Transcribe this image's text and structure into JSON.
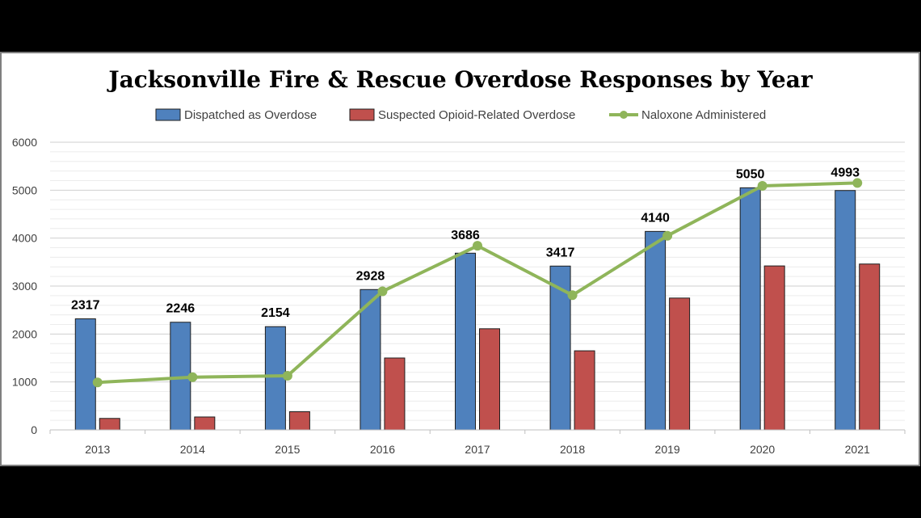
{
  "colors": {
    "dispatched": "#4f81bd",
    "suspected": "#c0504d",
    "naloxone": "#8fb55a",
    "grid": "#d9d9d9",
    "background": "#ffffff"
  },
  "chart_data": {
    "type": "bar",
    "title": "Jacksonville Fire & Rescue Overdose Responses by Year",
    "categories": [
      "2013",
      "2014",
      "2015",
      "2016",
      "2017",
      "2018",
      "2019",
      "2020",
      "2021"
    ],
    "series": [
      {
        "name": "Dispatched as Overdose",
        "type": "bar",
        "values": [
          2317,
          2246,
          2154,
          2928,
          3686,
          3417,
          4140,
          5050,
          4993
        ],
        "data_labels": [
          "2317",
          "2246",
          "2154",
          "2928",
          "3686",
          "3417",
          "4140",
          "5050",
          "4993"
        ]
      },
      {
        "name": "Suspected Opioid-Related Overdose",
        "type": "bar",
        "values": [
          240,
          270,
          380,
          1500,
          2110,
          1650,
          2750,
          3420,
          3460
        ]
      },
      {
        "name": "Naloxone Administered",
        "type": "line",
        "values": [
          990,
          1100,
          1130,
          2890,
          3840,
          2810,
          4050,
          5090,
          5150
        ]
      }
    ],
    "y_ticks": [
      "0",
      "1000",
      "2000",
      "3000",
      "4000",
      "5000",
      "6000"
    ],
    "ylim": [
      0,
      6000
    ],
    "grid": true,
    "legend": "top"
  }
}
